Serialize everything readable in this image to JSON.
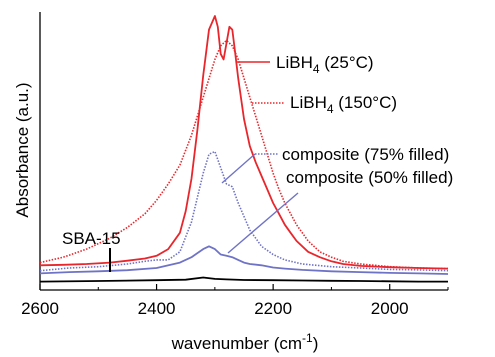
{
  "chart_data": {
    "type": "line",
    "title": "",
    "xlabel": "wavenumber (cm",
    "xlabel_sup": "-1",
    "xlabel_close": ")",
    "ylabel": "Absorbance (a.u.)",
    "xlim": [
      2600,
      1900
    ],
    "x_reversed": true,
    "ylim": [
      0,
      1
    ],
    "y_ticks_shown": false,
    "x_ticks": [
      {
        "value": 2600,
        "label": "2600"
      },
      {
        "value": 2400,
        "label": "2400"
      },
      {
        "value": 2200,
        "label": "2200"
      },
      {
        "value": 2000,
        "label": "2000"
      }
    ],
    "grid": false,
    "legend": "inline-annotations",
    "series": [
      {
        "name": "LiBH4 (25°C)",
        "label_main": "LiBH",
        "label_sub": "4",
        "label_rest": " (25°C)",
        "color": "#e8262b",
        "style": "solid",
        "x": [
          2600,
          2560,
          2520,
          2480,
          2450,
          2420,
          2400,
          2380,
          2360,
          2350,
          2340,
          2330,
          2320,
          2310,
          2300,
          2295,
          2290,
          2285,
          2280,
          2275,
          2270,
          2265,
          2260,
          2250,
          2240,
          2230,
          2220,
          2210,
          2200,
          2190,
          2180,
          2170,
          2160,
          2140,
          2120,
          2100,
          2080,
          2050,
          2000,
          1950,
          1900
        ],
        "y": [
          0.08,
          0.082,
          0.085,
          0.09,
          0.097,
          0.105,
          0.115,
          0.14,
          0.2,
          0.28,
          0.4,
          0.58,
          0.78,
          0.95,
          1.0,
          0.96,
          0.86,
          0.84,
          0.9,
          0.96,
          0.95,
          0.86,
          0.77,
          0.62,
          0.52,
          0.46,
          0.41,
          0.36,
          0.31,
          0.27,
          0.23,
          0.2,
          0.17,
          0.13,
          0.11,
          0.095,
          0.085,
          0.078,
          0.073,
          0.07,
          0.068
        ]
      },
      {
        "name": "LiBH4 (150°C)",
        "label_main": "LiBH",
        "label_sub": "4",
        "label_rest": " (150°C)",
        "color": "#e8262b",
        "style": "dotted",
        "x": [
          2600,
          2560,
          2520,
          2480,
          2450,
          2420,
          2400,
          2380,
          2360,
          2340,
          2320,
          2300,
          2290,
          2280,
          2270,
          2260,
          2250,
          2240,
          2230,
          2220,
          2210,
          2200,
          2190,
          2180,
          2170,
          2160,
          2140,
          2120,
          2100,
          2080,
          2050,
          2000,
          1950,
          1900
        ],
        "y": [
          0.09,
          0.11,
          0.14,
          0.18,
          0.22,
          0.27,
          0.32,
          0.38,
          0.45,
          0.56,
          0.7,
          0.84,
          0.89,
          0.91,
          0.89,
          0.84,
          0.77,
          0.7,
          0.63,
          0.56,
          0.49,
          0.42,
          0.36,
          0.31,
          0.27,
          0.23,
          0.17,
          0.13,
          0.11,
          0.095,
          0.085,
          0.075,
          0.07,
          0.068
        ]
      },
      {
        "name": "composite (75% filled)",
        "label_main": "composite (75% filled)",
        "label_sub": "",
        "label_rest": "",
        "color": "#6f73c6",
        "style": "dotted",
        "x": [
          2600,
          2550,
          2500,
          2450,
          2420,
          2400,
          2380,
          2360,
          2340,
          2320,
          2310,
          2300,
          2290,
          2280,
          2270,
          2260,
          2250,
          2240,
          2230,
          2220,
          2200,
          2180,
          2150,
          2100,
          2050,
          2000,
          1950,
          1900
        ],
        "y": [
          0.06,
          0.07,
          0.075,
          0.085,
          0.095,
          0.1,
          0.1,
          0.13,
          0.24,
          0.42,
          0.49,
          0.5,
          0.44,
          0.38,
          0.37,
          0.31,
          0.26,
          0.21,
          0.18,
          0.15,
          0.12,
          0.1,
          0.085,
          0.075,
          0.07,
          0.065,
          0.063,
          0.06
        ]
      },
      {
        "name": "composite (50% filled)",
        "label_main": "composite (50% filled)",
        "label_sub": "",
        "label_rest": "",
        "color": "#6f73c6",
        "style": "solid",
        "x": [
          2600,
          2550,
          2500,
          2450,
          2400,
          2360,
          2340,
          2320,
          2310,
          2300,
          2290,
          2280,
          2270,
          2260,
          2250,
          2240,
          2220,
          2200,
          2180,
          2150,
          2100,
          2050,
          2000,
          1950,
          1900
        ],
        "y": [
          0.05,
          0.055,
          0.058,
          0.062,
          0.07,
          0.09,
          0.11,
          0.14,
          0.15,
          0.14,
          0.12,
          0.115,
          0.11,
          0.1,
          0.09,
          0.085,
          0.08,
          0.072,
          0.068,
          0.063,
          0.058,
          0.055,
          0.052,
          0.05,
          0.048
        ]
      },
      {
        "name": "SBA-15",
        "label_main": "SBA-15",
        "label_sub": "",
        "label_rest": "",
        "color": "#000000",
        "style": "solid",
        "x": [
          2600,
          2500,
          2400,
          2350,
          2320,
          2300,
          2280,
          2250,
          2200,
          2150,
          2100,
          2050,
          2000,
          1950,
          1900
        ],
        "y": [
          0.02,
          0.022,
          0.025,
          0.027,
          0.035,
          0.03,
          0.028,
          0.026,
          0.025,
          0.024,
          0.023,
          0.022,
          0.021,
          0.02,
          0.02
        ]
      }
    ]
  }
}
